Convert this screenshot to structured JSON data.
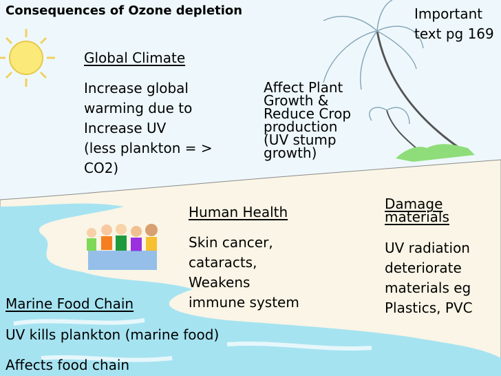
{
  "title": "Consequences of Ozone depletion",
  "note": "Important\ntext pg 169",
  "sections": {
    "global_climate": {
      "heading": "Global Climate",
      "body": "Increase global\nwarming due to\nIncrease UV\n(less plankton = >\nCO2)"
    },
    "plant_growth": {
      "body": "Affect Plant\nGrowth &\nReduce Crop\nproduction\n(UV stump\ngrowth)"
    },
    "human_health": {
      "heading": "Human Health",
      "body": "Skin cancer,\ncataracts,\nWeakens\nimmune system"
    },
    "damage_materials": {
      "heading": "Damage\nmaterials",
      "body": "UV radiation\ndeteriorate\nmaterials eg\nPlastics, PVC"
    },
    "marine_food_chain": {
      "heading": "Marine Food Chain",
      "lines": [
        "UV kills plankton (marine food)",
        "Affects food chain"
      ]
    }
  },
  "colors": {
    "sky": "#eef8fc",
    "sand": "#faf5e6",
    "sea": "#a6e3f1",
    "sun": "#fbe97a"
  }
}
